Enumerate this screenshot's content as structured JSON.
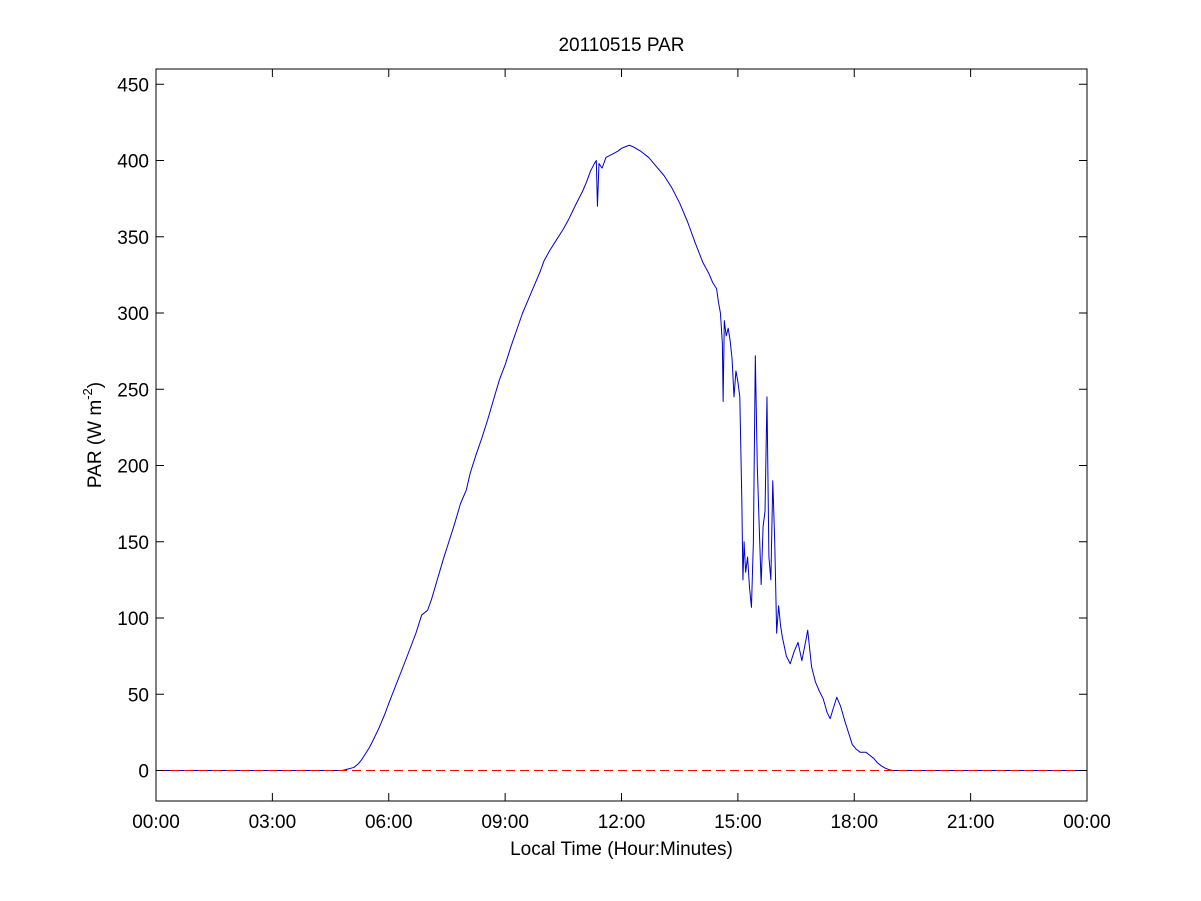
{
  "chart_data": {
    "type": "line",
    "title": "20110515 PAR",
    "xlabel": "Local Time (Hour:Minutes)",
    "ylabel": {
      "main": "PAR (W m",
      "sup": "-2",
      "close": ")"
    },
    "xlim_hours": [
      0,
      24
    ],
    "ylim": [
      -20,
      460
    ],
    "x_ticks": [
      {
        "value": 0,
        "label": "00:00"
      },
      {
        "value": 3,
        "label": "03:00"
      },
      {
        "value": 6,
        "label": "06:00"
      },
      {
        "value": 9,
        "label": "09:00"
      },
      {
        "value": 12,
        "label": "12:00"
      },
      {
        "value": 15,
        "label": "15:00"
      },
      {
        "value": 18,
        "label": "18:00"
      },
      {
        "value": 21,
        "label": "21:00"
      },
      {
        "value": 24,
        "label": "00:00"
      }
    ],
    "y_ticks": [
      {
        "value": 0,
        "label": "0"
      },
      {
        "value": 50,
        "label": "50"
      },
      {
        "value": 100,
        "label": "100"
      },
      {
        "value": 150,
        "label": "150"
      },
      {
        "value": 200,
        "label": "200"
      },
      {
        "value": 250,
        "label": "250"
      },
      {
        "value": 300,
        "label": "300"
      },
      {
        "value": 350,
        "label": "350"
      },
      {
        "value": 400,
        "label": "400"
      },
      {
        "value": 450,
        "label": "450"
      }
    ],
    "grid": false,
    "series": [
      {
        "style": "solid",
        "color": "#0000cc",
        "points": [
          [
            0,
            0
          ],
          [
            4.8,
            0
          ],
          [
            4.95,
            1
          ],
          [
            5.1,
            2
          ],
          [
            5.2,
            4
          ],
          [
            5.3,
            7
          ],
          [
            5.4,
            11
          ],
          [
            5.5,
            15
          ],
          [
            5.6,
            20
          ],
          [
            5.75,
            28
          ],
          [
            5.9,
            37
          ],
          [
            6.0,
            44
          ],
          [
            6.2,
            57
          ],
          [
            6.4,
            70
          ],
          [
            6.55,
            80
          ],
          [
            6.7,
            90
          ],
          [
            6.85,
            102
          ],
          [
            7.0,
            105
          ],
          [
            7.1,
            112
          ],
          [
            7.25,
            125
          ],
          [
            7.4,
            138
          ],
          [
            7.55,
            150
          ],
          [
            7.7,
            162
          ],
          [
            7.85,
            175
          ],
          [
            8.0,
            184
          ],
          [
            8.1,
            195
          ],
          [
            8.25,
            207
          ],
          [
            8.4,
            218
          ],
          [
            8.55,
            230
          ],
          [
            8.7,
            243
          ],
          [
            8.85,
            256
          ],
          [
            9.0,
            266
          ],
          [
            9.15,
            278
          ],
          [
            9.3,
            289
          ],
          [
            9.45,
            300
          ],
          [
            9.6,
            309
          ],
          [
            9.75,
            318
          ],
          [
            9.9,
            327
          ],
          [
            10.0,
            334
          ],
          [
            10.15,
            341
          ],
          [
            10.3,
            347
          ],
          [
            10.5,
            355
          ],
          [
            10.65,
            362
          ],
          [
            10.8,
            370
          ],
          [
            11.0,
            380
          ],
          [
            11.1,
            386
          ],
          [
            11.2,
            393
          ],
          [
            11.3,
            398
          ],
          [
            11.35,
            400
          ],
          [
            11.38,
            370
          ],
          [
            11.42,
            398
          ],
          [
            11.5,
            395
          ],
          [
            11.6,
            402
          ],
          [
            11.75,
            404
          ],
          [
            11.9,
            406
          ],
          [
            12.0,
            408
          ],
          [
            12.1,
            409
          ],
          [
            12.2,
            410
          ],
          [
            12.3,
            409
          ],
          [
            12.5,
            406
          ],
          [
            12.7,
            402
          ],
          [
            12.9,
            396
          ],
          [
            13.1,
            390
          ],
          [
            13.3,
            382
          ],
          [
            13.5,
            372
          ],
          [
            13.7,
            360
          ],
          [
            13.9,
            346
          ],
          [
            14.1,
            333
          ],
          [
            14.25,
            326
          ],
          [
            14.35,
            320
          ],
          [
            14.45,
            316
          ],
          [
            14.5,
            307
          ],
          [
            14.55,
            300
          ],
          [
            14.6,
            280
          ],
          [
            14.62,
            242
          ],
          [
            14.65,
            295
          ],
          [
            14.7,
            285
          ],
          [
            14.75,
            290
          ],
          [
            14.8,
            282
          ],
          [
            14.85,
            270
          ],
          [
            14.9,
            245
          ],
          [
            14.95,
            262
          ],
          [
            15.0,
            255
          ],
          [
            15.05,
            245
          ],
          [
            15.1,
            180
          ],
          [
            15.13,
            125
          ],
          [
            15.16,
            150
          ],
          [
            15.2,
            130
          ],
          [
            15.25,
            140
          ],
          [
            15.3,
            120
          ],
          [
            15.35,
            107
          ],
          [
            15.4,
            150
          ],
          [
            15.45,
            272
          ],
          [
            15.5,
            200
          ],
          [
            15.55,
            160
          ],
          [
            15.6,
            122
          ],
          [
            15.65,
            160
          ],
          [
            15.7,
            170
          ],
          [
            15.75,
            245
          ],
          [
            15.8,
            140
          ],
          [
            15.85,
            125
          ],
          [
            15.9,
            190
          ],
          [
            15.95,
            150
          ],
          [
            16.0,
            90
          ],
          [
            16.05,
            108
          ],
          [
            16.1,
            95
          ],
          [
            16.15,
            87
          ],
          [
            16.25,
            75
          ],
          [
            16.35,
            70
          ],
          [
            16.45,
            78
          ],
          [
            16.55,
            84
          ],
          [
            16.65,
            72
          ],
          [
            16.75,
            85
          ],
          [
            16.8,
            92
          ],
          [
            16.85,
            80
          ],
          [
            16.9,
            68
          ],
          [
            17.0,
            58
          ],
          [
            17.1,
            52
          ],
          [
            17.2,
            47
          ],
          [
            17.3,
            38
          ],
          [
            17.38,
            34
          ],
          [
            17.45,
            40
          ],
          [
            17.55,
            48
          ],
          [
            17.65,
            42
          ],
          [
            17.75,
            33
          ],
          [
            17.85,
            25
          ],
          [
            17.95,
            17
          ],
          [
            18.05,
            14
          ],
          [
            18.15,
            12
          ],
          [
            18.3,
            12
          ],
          [
            18.4,
            10
          ],
          [
            18.5,
            8
          ],
          [
            18.6,
            5
          ],
          [
            18.7,
            3
          ],
          [
            18.8,
            1.5
          ],
          [
            18.9,
            0.5
          ],
          [
            19.0,
            0
          ],
          [
            24,
            0
          ]
        ]
      },
      {
        "style": "dashed",
        "color": "#ff0000",
        "points": [
          [
            0,
            0
          ],
          [
            24,
            0
          ]
        ]
      }
    ]
  }
}
